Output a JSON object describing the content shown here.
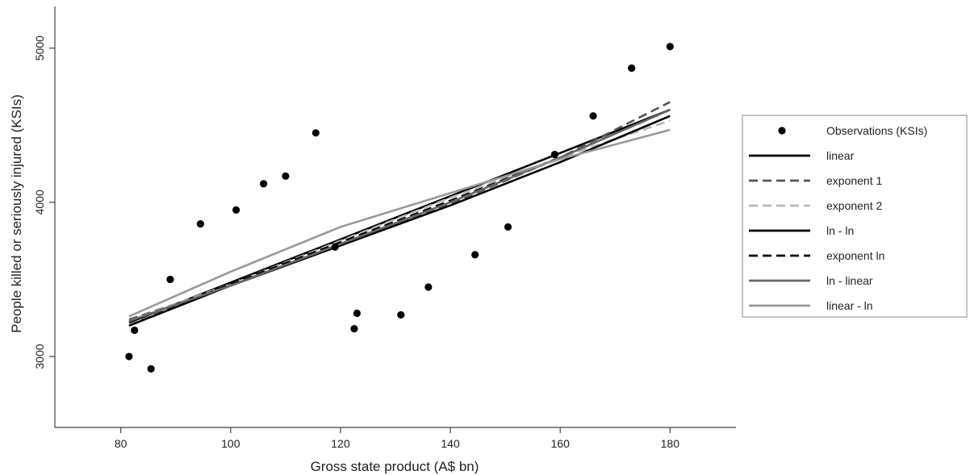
{
  "chart_data": {
    "type": "scatter",
    "title": "",
    "xlabel": "Gross state product (A$ bn)",
    "ylabel": "People killed or seriously injured (KSIs)",
    "xlim": [
      68,
      192
    ],
    "ylim": [
      2540,
      5270
    ],
    "x_ticks": [
      80,
      100,
      120,
      140,
      160,
      180
    ],
    "y_ticks": [
      3000,
      4000,
      5000
    ],
    "grid": false,
    "legend_position": "right",
    "observations": {
      "name": "Observations (KSIs)",
      "color": "#000000",
      "points": [
        {
          "x": 81.5,
          "y": 3000
        },
        {
          "x": 82.5,
          "y": 3170
        },
        {
          "x": 85.5,
          "y": 2920
        },
        {
          "x": 89,
          "y": 3500
        },
        {
          "x": 94.5,
          "y": 3860
        },
        {
          "x": 101,
          "y": 3950
        },
        {
          "x": 106,
          "y": 4120
        },
        {
          "x": 110,
          "y": 4170
        },
        {
          "x": 115.5,
          "y": 4450
        },
        {
          "x": 119,
          "y": 3710
        },
        {
          "x": 122.5,
          "y": 3180
        },
        {
          "x": 123,
          "y": 3280
        },
        {
          "x": 131,
          "y": 3270
        },
        {
          "x": 136,
          "y": 3450
        },
        {
          "x": 144.5,
          "y": 3660
        },
        {
          "x": 150.5,
          "y": 3840
        },
        {
          "x": 159,
          "y": 4310
        },
        {
          "x": 166,
          "y": 4560
        },
        {
          "x": 173,
          "y": 4870
        },
        {
          "x": 180,
          "y": 5010
        }
      ]
    },
    "series": [
      {
        "name": "linear",
        "color": "#000000",
        "dash": "solid",
        "x": [
          81.5,
          180
        ],
        "y": [
          3220,
          4600
        ]
      },
      {
        "name": "exponent 1",
        "color": "#555555",
        "dash": "dashed",
        "x": [
          81.5,
          100,
          120,
          140,
          160,
          180
        ],
        "y": [
          3240,
          3460,
          3720,
          3990,
          4290,
          4650
        ]
      },
      {
        "name": "exponent 2",
        "color": "#b8b8b8",
        "dash": "dashed",
        "x": [
          81.5,
          100,
          120,
          140,
          160,
          180
        ],
        "y": [
          3230,
          3470,
          3750,
          4030,
          4290,
          4530
        ]
      },
      {
        "name": "ln - ln",
        "color": "#000000",
        "dash": "solid",
        "x": [
          81.5,
          100,
          120,
          140,
          160,
          180
        ],
        "y": [
          3200,
          3460,
          3720,
          3980,
          4260,
          4560
        ]
      },
      {
        "name": "exponent ln",
        "color": "#000000",
        "dash": "dashed",
        "x": [
          81.5,
          100,
          120,
          140,
          160,
          180
        ],
        "y": [
          3200,
          3470,
          3740,
          4010,
          4290,
          4600
        ]
      },
      {
        "name": "ln - linear",
        "color": "#666666",
        "dash": "solid",
        "x": [
          81.5,
          100,
          120,
          140,
          160,
          180
        ],
        "y": [
          3230,
          3460,
          3730,
          4000,
          4290,
          4600
        ]
      },
      {
        "name": "linear - ln",
        "color": "#999999",
        "dash": "solid",
        "x": [
          81.5,
          100,
          120,
          140,
          160,
          180
        ],
        "y": [
          3260,
          3550,
          3840,
          4060,
          4280,
          4470
        ]
      }
    ]
  }
}
